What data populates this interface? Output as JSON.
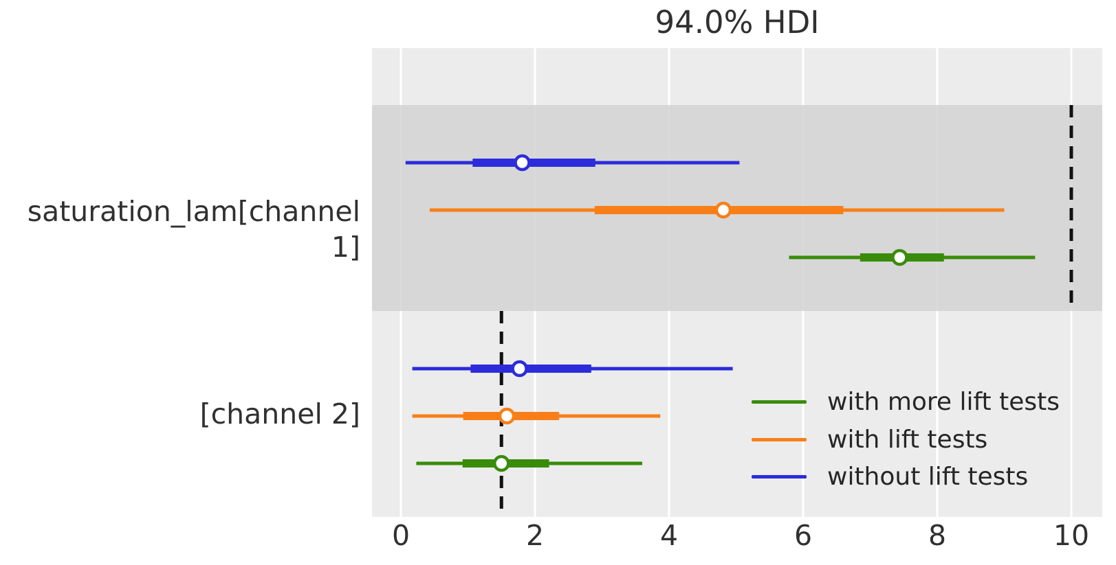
{
  "chart_data": {
    "type": "forest",
    "title": "94.0% HDI",
    "x_ticks": [
      0,
      2,
      4,
      6,
      8,
      10
    ],
    "xlim": [
      -0.43,
      10.46
    ],
    "grid": true,
    "legend_position": "lower right",
    "style": {
      "plot_bg": "#ececec",
      "band": "#d2d2d2",
      "grid_color": "#ffffff",
      "reference_color": "#111111",
      "text_color": "#303030"
    },
    "rows": [
      {
        "label": "saturation_lam[channel 1]",
        "shaded": true,
        "reference_value": 10.0,
        "intervals": [
          {
            "series": "without lift tests",
            "color": "#2c2cdb",
            "hdi_low": 0.07,
            "q_low": 1.07,
            "median": 1.81,
            "q_high": 2.9,
            "hdi_high": 5.05
          },
          {
            "series": "with lift tests",
            "color": "#f87f18",
            "hdi_low": 0.43,
            "q_low": 2.89,
            "median": 4.81,
            "q_high": 6.6,
            "hdi_high": 9.0
          },
          {
            "series": "with more lift tests",
            "color": "#398c0a",
            "hdi_low": 5.79,
            "q_low": 6.85,
            "median": 7.44,
            "q_high": 8.1,
            "hdi_high": 9.46
          }
        ]
      },
      {
        "label": "[channel 2]",
        "shaded": false,
        "reference_value": 1.5,
        "intervals": [
          {
            "series": "without lift tests",
            "color": "#2c2cdb",
            "hdi_low": 0.17,
            "q_low": 1.04,
            "median": 1.77,
            "q_high": 2.84,
            "hdi_high": 4.95
          },
          {
            "series": "with lift tests",
            "color": "#f87f18",
            "hdi_low": 0.17,
            "q_low": 0.93,
            "median": 1.58,
            "q_high": 2.36,
            "hdi_high": 3.87
          },
          {
            "series": "with more lift tests",
            "color": "#398c0a",
            "hdi_low": 0.23,
            "q_low": 0.92,
            "median": 1.5,
            "q_high": 2.21,
            "hdi_high": 3.6
          }
        ]
      }
    ],
    "legend": [
      {
        "label": "with more lift tests",
        "color": "#398c0a"
      },
      {
        "label": "with lift tests",
        "color": "#f87f18"
      },
      {
        "label": "without lift tests",
        "color": "#2c2cdb"
      }
    ]
  }
}
